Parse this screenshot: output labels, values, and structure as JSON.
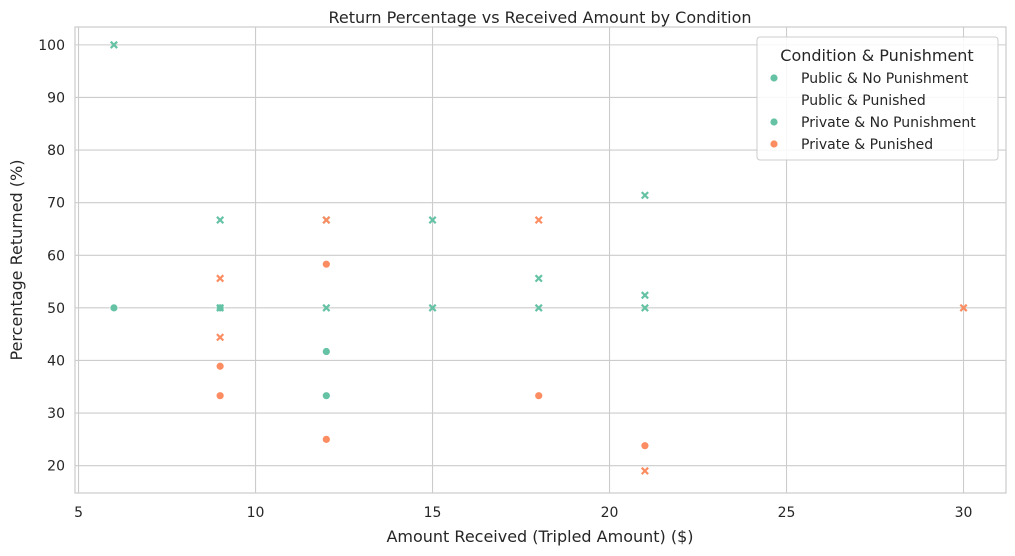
{
  "chart_data": {
    "type": "scatter",
    "title": "Return Percentage vs Received Amount by Condition",
    "xlabel": "Amount Received (Tripled Amount) ($)",
    "ylabel": "Percentage Returned (%)",
    "xlim": [
      4.9,
      31.2
    ],
    "ylim": [
      14.8,
      103.4
    ],
    "xticks": [
      5,
      10,
      15,
      20,
      25,
      30
    ],
    "yticks": [
      20,
      30,
      40,
      50,
      60,
      70,
      80,
      90,
      100
    ],
    "grid": true,
    "legend": {
      "title": "Condition & Punishment",
      "placement": "top-right",
      "entries": [
        {
          "label": "Public & No Punishment",
          "marker": "circle",
          "color": "#66c2a5"
        },
        {
          "label": "Public & Punished",
          "marker": "none",
          "color": ""
        },
        {
          "label": "Private & No Punishment",
          "marker": "circle",
          "color": "#66c2a5"
        },
        {
          "label": "Private & Punished",
          "marker": "circle",
          "color": "#fc8d62"
        }
      ]
    },
    "series": [
      {
        "group": "No Punishment",
        "marker": "circle",
        "color": "#66c2a5",
        "points": [
          {
            "x": 6,
            "y": 50
          },
          {
            "x": 9,
            "y": 50
          },
          {
            "x": 12,
            "y": 41.7
          },
          {
            "x": 12,
            "y": 33.3
          }
        ]
      },
      {
        "group": "No Punishment",
        "marker": "x",
        "color": "#66c2a5",
        "points": [
          {
            "x": 6,
            "y": 100
          },
          {
            "x": 9,
            "y": 66.7
          },
          {
            "x": 9,
            "y": 50
          },
          {
            "x": 12,
            "y": 66.7
          },
          {
            "x": 12,
            "y": 50
          },
          {
            "x": 15,
            "y": 66.7
          },
          {
            "x": 15,
            "y": 50
          },
          {
            "x": 18,
            "y": 55.6
          },
          {
            "x": 18,
            "y": 50
          },
          {
            "x": 21,
            "y": 71.4
          },
          {
            "x": 21,
            "y": 52.4
          },
          {
            "x": 21,
            "y": 50
          }
        ]
      },
      {
        "group": "Punished",
        "marker": "circle",
        "color": "#fc8d62",
        "points": [
          {
            "x": 9,
            "y": 38.9
          },
          {
            "x": 9,
            "y": 33.3
          },
          {
            "x": 12,
            "y": 58.3
          },
          {
            "x": 12,
            "y": 25
          },
          {
            "x": 18,
            "y": 33.3
          },
          {
            "x": 21,
            "y": 23.8
          }
        ]
      },
      {
        "group": "Punished",
        "marker": "x",
        "color": "#fc8d62",
        "points": [
          {
            "x": 9,
            "y": 55.6
          },
          {
            "x": 9,
            "y": 44.4
          },
          {
            "x": 12,
            "y": 66.7
          },
          {
            "x": 18,
            "y": 66.7
          },
          {
            "x": 21,
            "y": 19
          },
          {
            "x": 30,
            "y": 50
          }
        ]
      }
    ]
  }
}
